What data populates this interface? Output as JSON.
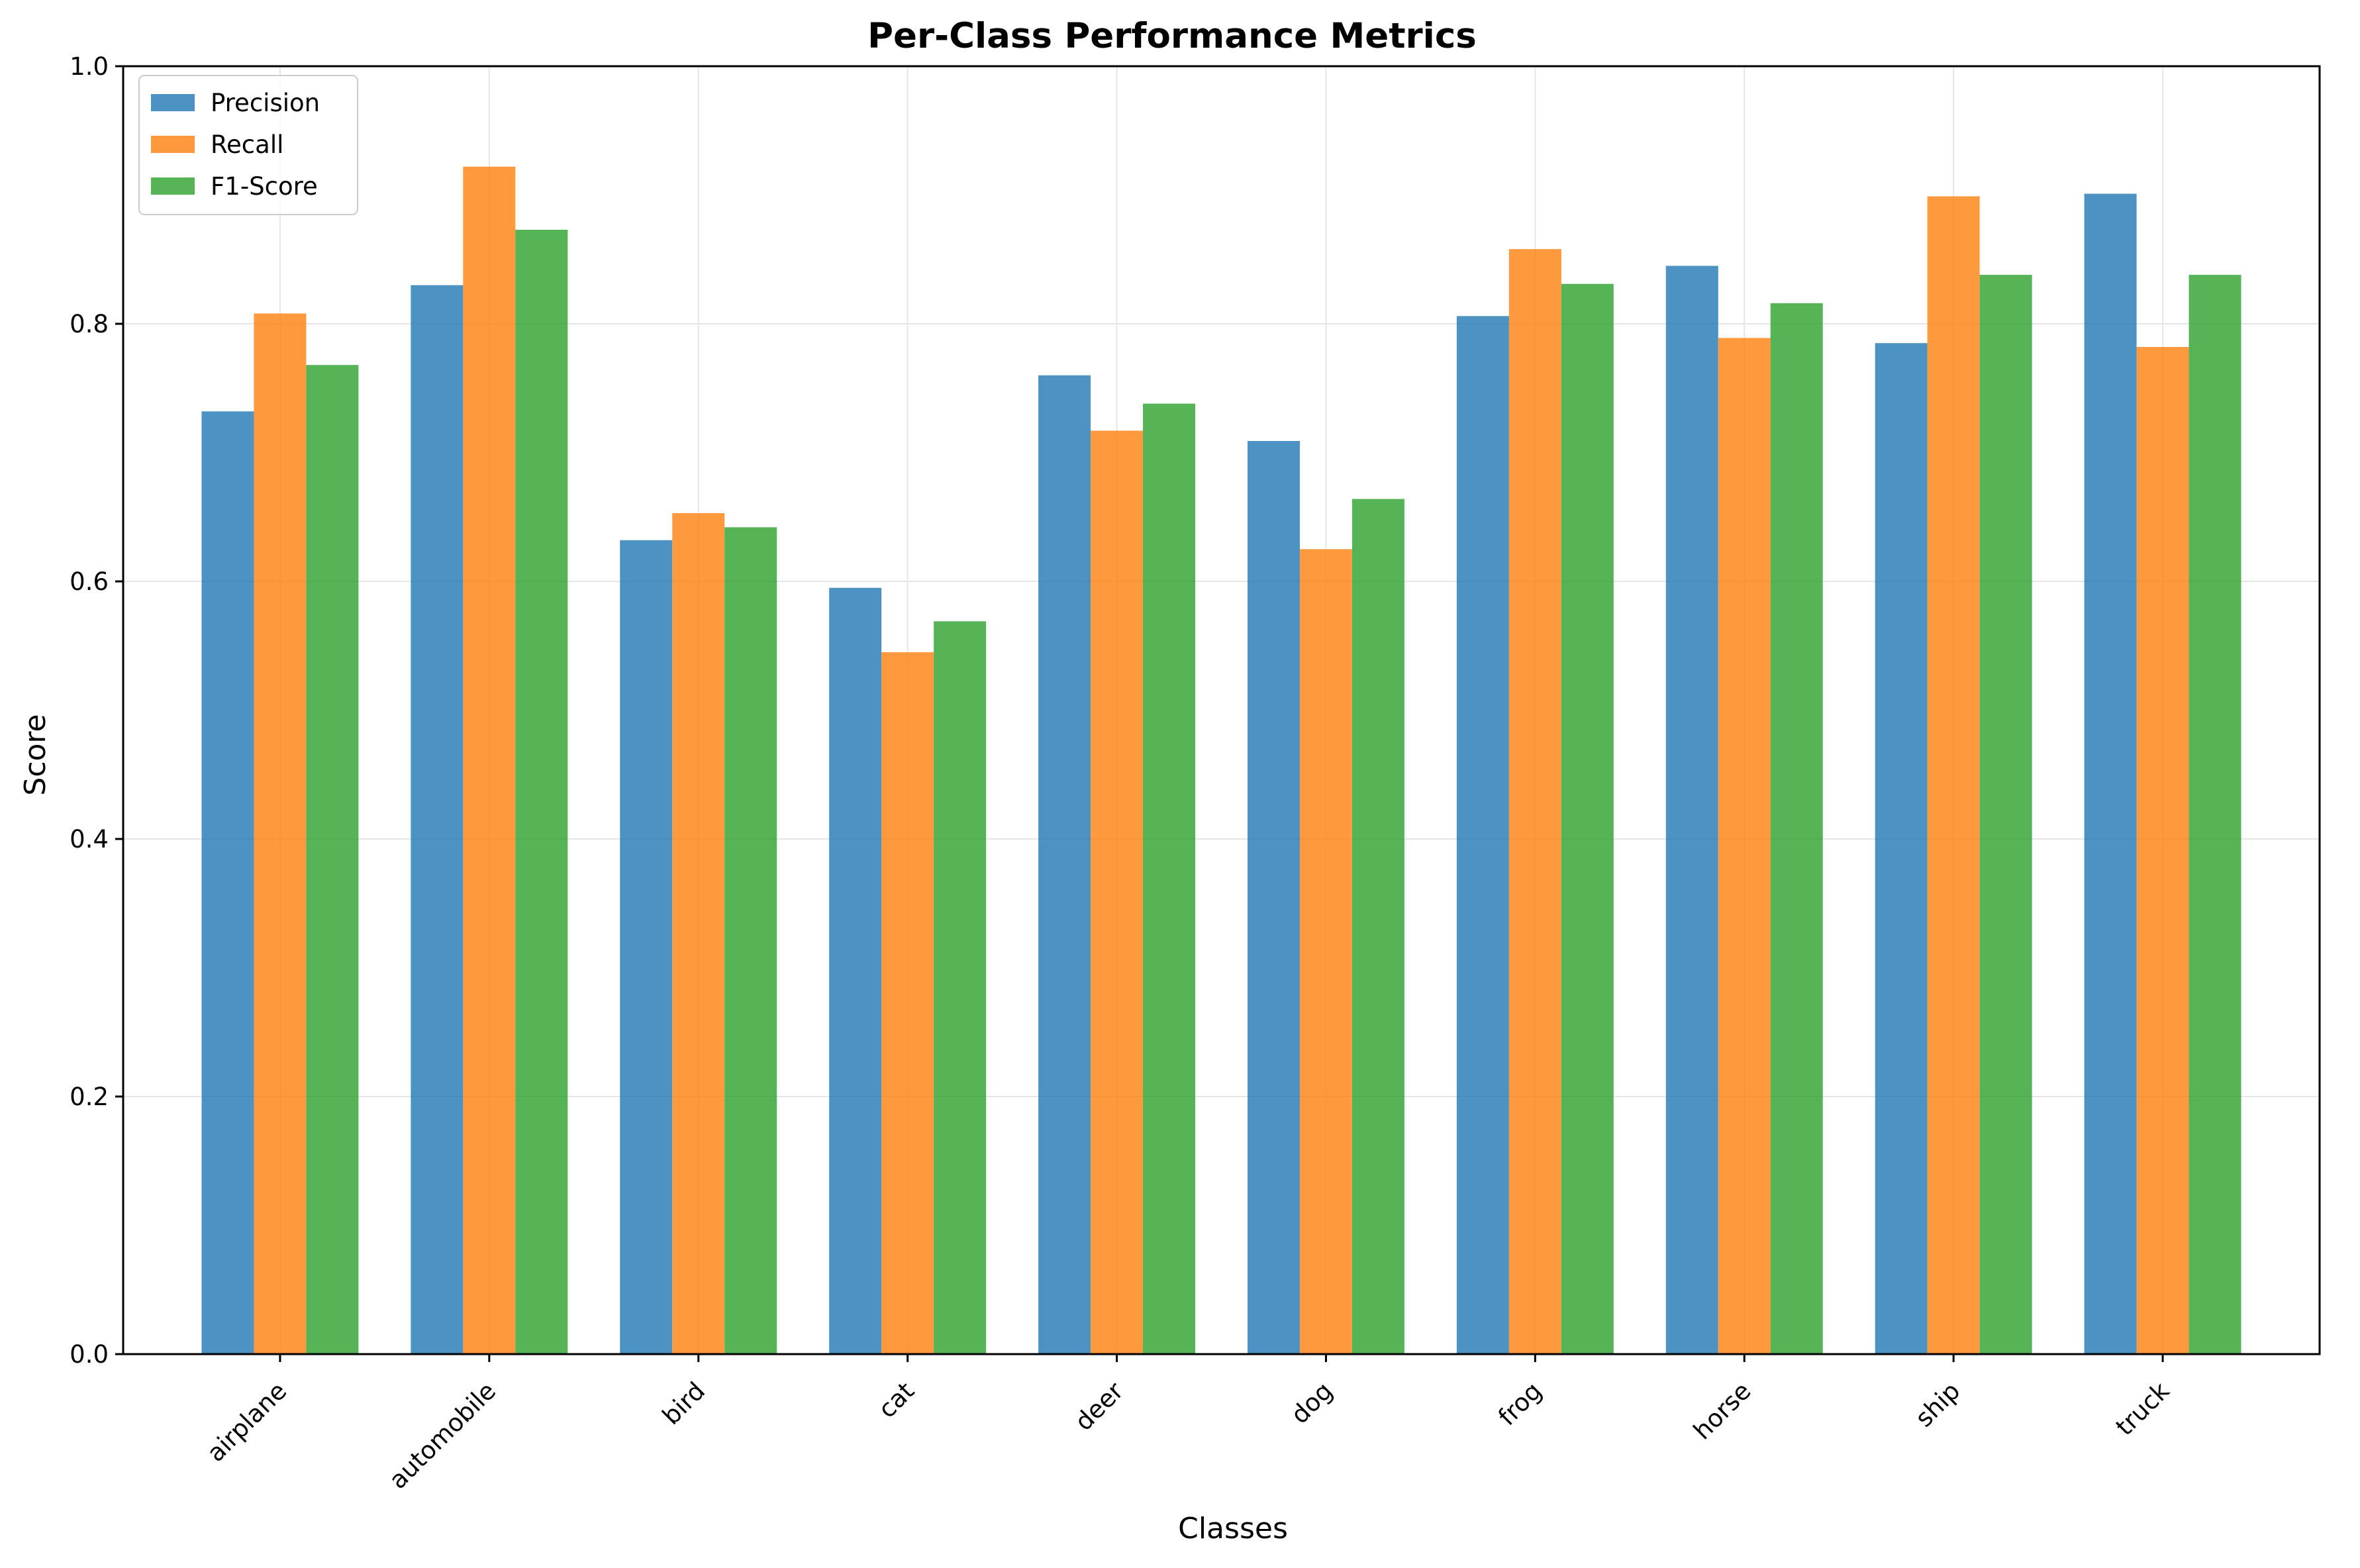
{
  "chart_data": {
    "type": "bar",
    "title": "Per-Class Performance Metrics",
    "xlabel": "Classes",
    "ylabel": "Score",
    "ylim": [
      0,
      1.0
    ],
    "yticks": [
      "0.0",
      "0.2",
      "0.4",
      "0.6",
      "0.8",
      "1.0"
    ],
    "grid": true,
    "legend_position": "upper-left",
    "categories": [
      "airplane",
      "automobile",
      "bird",
      "cat",
      "deer",
      "dog",
      "frog",
      "horse",
      "ship",
      "truck"
    ],
    "series": [
      {
        "name": "Precision",
        "color": "#1f77b4",
        "values": [
          0.732,
          0.83,
          0.632,
          0.595,
          0.76,
          0.709,
          0.806,
          0.845,
          0.785,
          0.901
        ]
      },
      {
        "name": "Recall",
        "color": "#ff7f0e",
        "values": [
          0.808,
          0.922,
          0.653,
          0.545,
          0.717,
          0.625,
          0.858,
          0.789,
          0.899,
          0.782
        ]
      },
      {
        "name": "F1-Score",
        "color": "#2ca02c",
        "values": [
          0.768,
          0.873,
          0.642,
          0.569,
          0.738,
          0.664,
          0.831,
          0.816,
          0.838,
          0.838
        ]
      }
    ]
  }
}
